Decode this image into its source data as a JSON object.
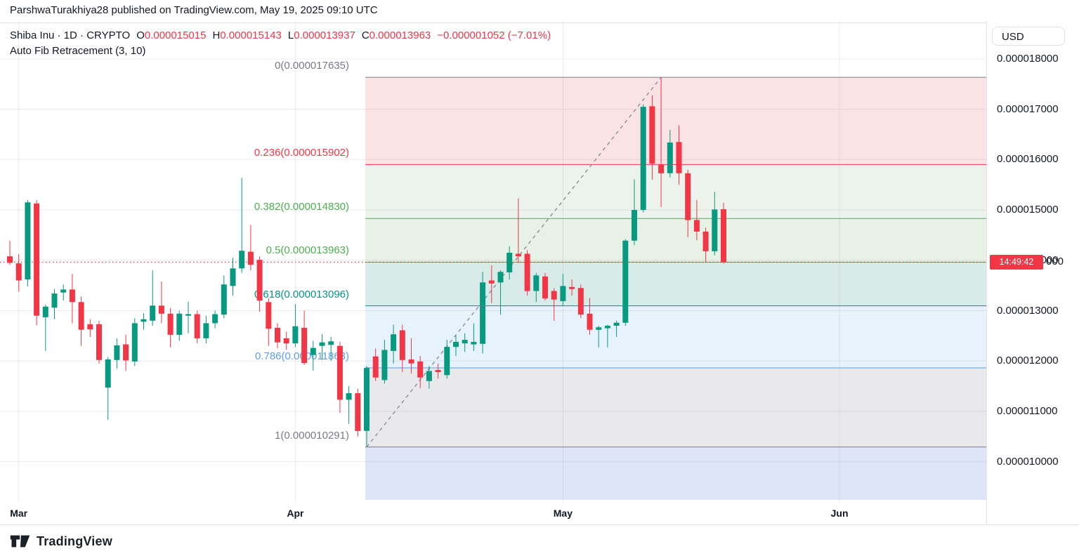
{
  "header": {
    "published_line": "ParshwaTurakhiya28 published on TradingView.com, May 19, 2025 09:10 UTC"
  },
  "legend": {
    "symbol_text": "Shiba Inu · 1D · CRYPTO",
    "ohlc": [
      {
        "label": "O",
        "value": "0.000015015"
      },
      {
        "label": "H",
        "value": "0.000015143"
      },
      {
        "label": "L",
        "value": "0.000013937"
      },
      {
        "label": "C",
        "value": "0.000013963"
      }
    ],
    "change_text": "−0.000001052 (−7.01%)",
    "indicator_text": "Auto Fib Retracement (3, 10)"
  },
  "price_axis": {
    "currency": "USD",
    "labels": [
      {
        "text": "0.000018000",
        "price": 18
      },
      {
        "text": "0.000017000",
        "price": 17
      },
      {
        "text": "0.000016000",
        "price": 16
      },
      {
        "text": "0.000015000",
        "price": 15
      },
      {
        "text": "0.000014000",
        "price": 14
      },
      {
        "text": "0.000013000",
        "price": 13
      },
      {
        "text": "0.000012000",
        "price": 12
      },
      {
        "text": "0.000011000",
        "price": 11
      },
      {
        "text": "0.000010000",
        "price": 10
      }
    ],
    "countdown": "14:49:42",
    "countdown_tail": "000"
  },
  "footer": {
    "brand": "TradingView"
  },
  "colors": {
    "up": "#089981",
    "down": "#f23645",
    "text": "#131722",
    "grid": "rgba(120,123,134,0.14)",
    "trend_dash": "#8a8e99",
    "close_line": "#f23645",
    "badge_bg": "#f23645"
  },
  "chart_data": {
    "type": "candlestick",
    "symbol": "Shiba Inu (SHIB/USD)",
    "interval": "1D",
    "price_scale": 1e-06,
    "note": "candle values are [open, high, low, close] in units of 0.000001 USD, daily bars from Feb 28 to May 19 2025",
    "y_axis_range_micro": [
      9.2,
      18.4
    ],
    "last_close_micro": 13.963,
    "x_axis": {
      "months": [
        {
          "label": "Mar",
          "day_index": 1
        },
        {
          "label": "Apr",
          "day_index": 32
        },
        {
          "label": "May",
          "day_index": 62
        },
        {
          "label": "Jun",
          "day_index": 93
        }
      ]
    },
    "fib": {
      "name": "Auto Fib Retracement",
      "params": "(3, 10)",
      "zone_start_day_index": 40,
      "trend": {
        "from": {
          "day_index": 40,
          "price_micro": 10.291
        },
        "to": {
          "day_index": 73,
          "price_micro": 17.635
        }
      },
      "levels": [
        {
          "level": "0",
          "price_text": "0.000017635",
          "price_micro": 17.635,
          "color": "#787b86",
          "band_below": "#fbe2e5"
        },
        {
          "level": "0.236",
          "price_text": "0.000015902",
          "price_micro": 15.902,
          "color": "#f23645",
          "band_below": "#ecf3ec"
        },
        {
          "level": "0.382",
          "price_text": "0.000014830",
          "price_micro": 14.83,
          "color": "#4caf50",
          "band_below": "#e7f1e6"
        },
        {
          "level": "0.5",
          "price_text": "0.000013963",
          "price_micro": 13.963,
          "color": "#4caf50",
          "band_below": "#d9ebe9"
        },
        {
          "level": "0.618",
          "price_text": "0.000013096",
          "price_micro": 13.096,
          "color": "#009688",
          "band_below": "#e6f2fc"
        },
        {
          "level": "0.786",
          "price_text": "0.000011863",
          "price_micro": 11.863,
          "color": "#5b9cf6",
          "band_below": "#e9e9eb"
        },
        {
          "level": "1",
          "price_text": "0.000010291",
          "price_micro": 10.291,
          "color": "#787b86",
          "band_below": "#dfe5f8"
        }
      ]
    },
    "candles": [
      [
        14.08,
        14.39,
        13.91,
        13.95
      ],
      [
        13.94,
        14.12,
        13.38,
        13.6
      ],
      [
        13.62,
        15.2,
        13.48,
        15.15
      ],
      [
        15.13,
        15.2,
        12.71,
        12.9
      ],
      [
        12.87,
        13.12,
        12.2,
        13.08
      ],
      [
        13.06,
        13.43,
        12.83,
        13.34
      ],
      [
        13.36,
        13.52,
        13.2,
        13.42
      ],
      [
        13.42,
        13.73,
        12.75,
        13.17
      ],
      [
        13.17,
        13.28,
        12.3,
        12.62
      ],
      [
        12.73,
        12.83,
        12.48,
        12.63
      ],
      [
        12.73,
        12.8,
        11.95,
        12.02
      ],
      [
        11.47,
        12.08,
        10.83,
        12.03
      ],
      [
        12.02,
        12.45,
        11.85,
        12.31
      ],
      [
        12.33,
        12.52,
        11.8,
        12.01
      ],
      [
        11.99,
        12.85,
        11.9,
        12.75
      ],
      [
        12.78,
        12.95,
        12.62,
        12.83
      ],
      [
        12.8,
        13.8,
        12.7,
        13.1
      ],
      [
        13.1,
        13.58,
        12.75,
        12.94
      ],
      [
        12.94,
        13.05,
        12.27,
        12.52
      ],
      [
        12.52,
        13.0,
        12.4,
        12.94
      ],
      [
        12.9,
        13.18,
        12.55,
        12.93
      ],
      [
        12.93,
        13.0,
        12.35,
        12.45
      ],
      [
        12.45,
        12.9,
        12.35,
        12.75
      ],
      [
        12.75,
        13.0,
        12.65,
        12.93
      ],
      [
        12.92,
        13.7,
        12.85,
        13.52
      ],
      [
        13.49,
        14.05,
        13.3,
        13.84
      ],
      [
        13.84,
        15.64,
        13.75,
        14.19
      ],
      [
        14.17,
        14.7,
        13.8,
        13.91
      ],
      [
        14.01,
        14.08,
        12.98,
        13.2
      ],
      [
        13.17,
        13.25,
        12.3,
        12.64
      ],
      [
        12.66,
        12.75,
        12.25,
        12.37
      ],
      [
        12.45,
        12.58,
        12.22,
        12.35
      ],
      [
        12.35,
        13.13,
        12.28,
        12.69
      ],
      [
        12.66,
        13.0,
        11.92,
        11.96
      ],
      [
        12.12,
        12.4,
        11.81,
        12.26
      ],
      [
        12.3,
        12.53,
        12.02,
        12.37
      ],
      [
        12.32,
        12.48,
        12.0,
        12.39
      ],
      [
        12.3,
        12.38,
        10.97,
        11.23
      ],
      [
        11.23,
        11.5,
        10.75,
        11.36
      ],
      [
        11.36,
        11.45,
        10.5,
        10.61
      ],
      [
        10.61,
        11.9,
        10.291,
        11.86
      ],
      [
        12.09,
        12.25,
        11.6,
        11.67
      ],
      [
        11.62,
        12.42,
        11.55,
        12.22
      ],
      [
        12.2,
        12.72,
        11.95,
        12.53
      ],
      [
        12.61,
        12.72,
        11.78,
        12.02
      ],
      [
        12.03,
        12.45,
        11.75,
        11.95
      ],
      [
        11.99,
        12.1,
        11.46,
        11.67
      ],
      [
        11.6,
        11.9,
        11.45,
        11.8
      ],
      [
        11.82,
        11.95,
        11.65,
        11.78
      ],
      [
        11.72,
        12.42,
        11.65,
        12.28
      ],
      [
        12.28,
        12.5,
        12.1,
        12.38
      ],
      [
        12.35,
        12.55,
        12.18,
        12.42
      ],
      [
        12.33,
        12.75,
        12.2,
        12.38
      ],
      [
        12.34,
        13.77,
        12.15,
        13.56
      ],
      [
        13.6,
        13.9,
        13.15,
        13.54
      ],
      [
        13.56,
        13.8,
        12.92,
        13.77
      ],
      [
        13.76,
        14.28,
        13.62,
        14.15
      ],
      [
        14.13,
        15.23,
        13.95,
        14.08
      ],
      [
        14.13,
        14.2,
        13.3,
        13.39
      ],
      [
        13.39,
        13.75,
        13.17,
        13.7
      ],
      [
        13.68,
        13.75,
        13.2,
        13.24
      ],
      [
        13.39,
        13.45,
        12.8,
        13.22
      ],
      [
        13.19,
        13.73,
        13.1,
        13.49
      ],
      [
        13.47,
        13.62,
        13.3,
        13.43
      ],
      [
        13.45,
        13.52,
        12.85,
        12.92
      ],
      [
        12.94,
        13.25,
        12.52,
        12.62
      ],
      [
        12.62,
        12.7,
        12.27,
        12.67
      ],
      [
        12.65,
        12.72,
        12.27,
        12.7
      ],
      [
        12.7,
        12.8,
        12.48,
        12.76
      ],
      [
        12.76,
        14.42,
        12.7,
        14.39
      ],
      [
        14.39,
        15.61,
        14.3,
        15.0
      ],
      [
        15.0,
        17.1,
        14.95,
        17.05
      ],
      [
        17.06,
        17.28,
        15.6,
        15.92
      ],
      [
        15.9,
        17.635,
        15.06,
        15.73
      ],
      [
        15.73,
        16.59,
        15.65,
        16.34
      ],
      [
        16.35,
        16.68,
        15.5,
        15.73
      ],
      [
        15.73,
        15.8,
        14.46,
        14.8
      ],
      [
        14.8,
        15.2,
        14.4,
        14.57
      ],
      [
        14.57,
        14.65,
        13.97,
        14.18
      ],
      [
        14.18,
        15.36,
        14.1,
        15.01
      ],
      [
        15.015,
        15.143,
        13.937,
        13.963
      ]
    ]
  }
}
